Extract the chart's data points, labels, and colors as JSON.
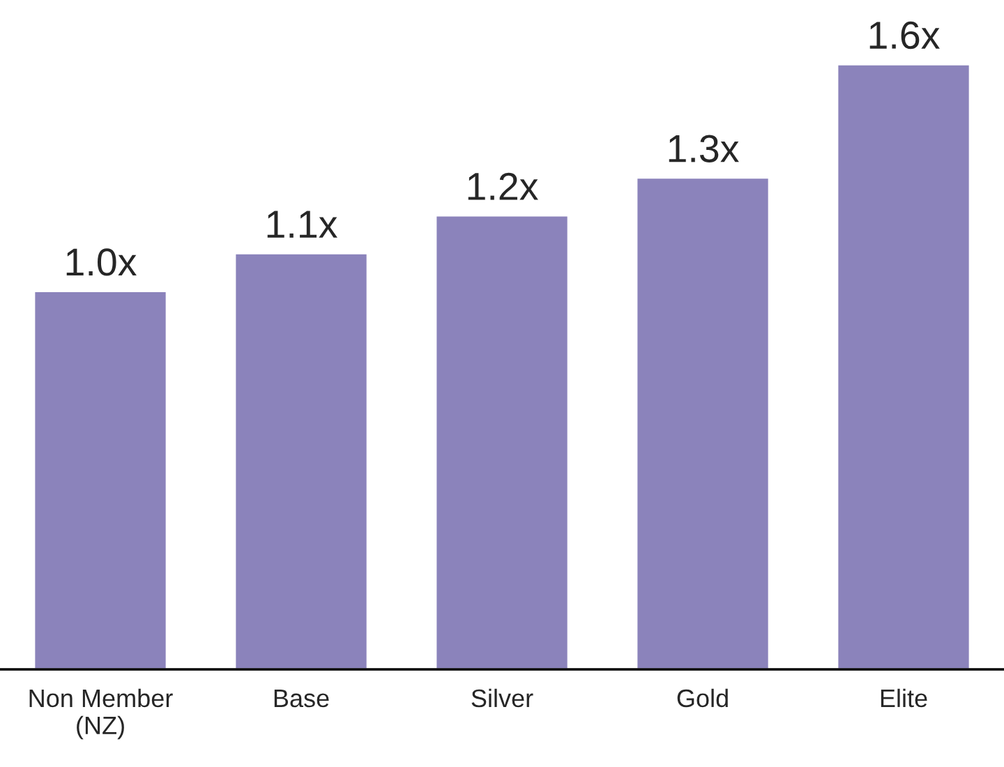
{
  "chart_data": {
    "type": "bar",
    "categories": [
      "Non Member\n(NZ)",
      "Base",
      "Silver",
      "Gold",
      "Elite"
    ],
    "values": [
      1.0,
      1.1,
      1.2,
      1.3,
      1.6
    ],
    "value_labels": [
      "1.0x",
      "1.1x",
      "1.2x",
      "1.3x",
      "1.6x"
    ],
    "color": "#8b83bb",
    "grid": false,
    "legend": false
  }
}
